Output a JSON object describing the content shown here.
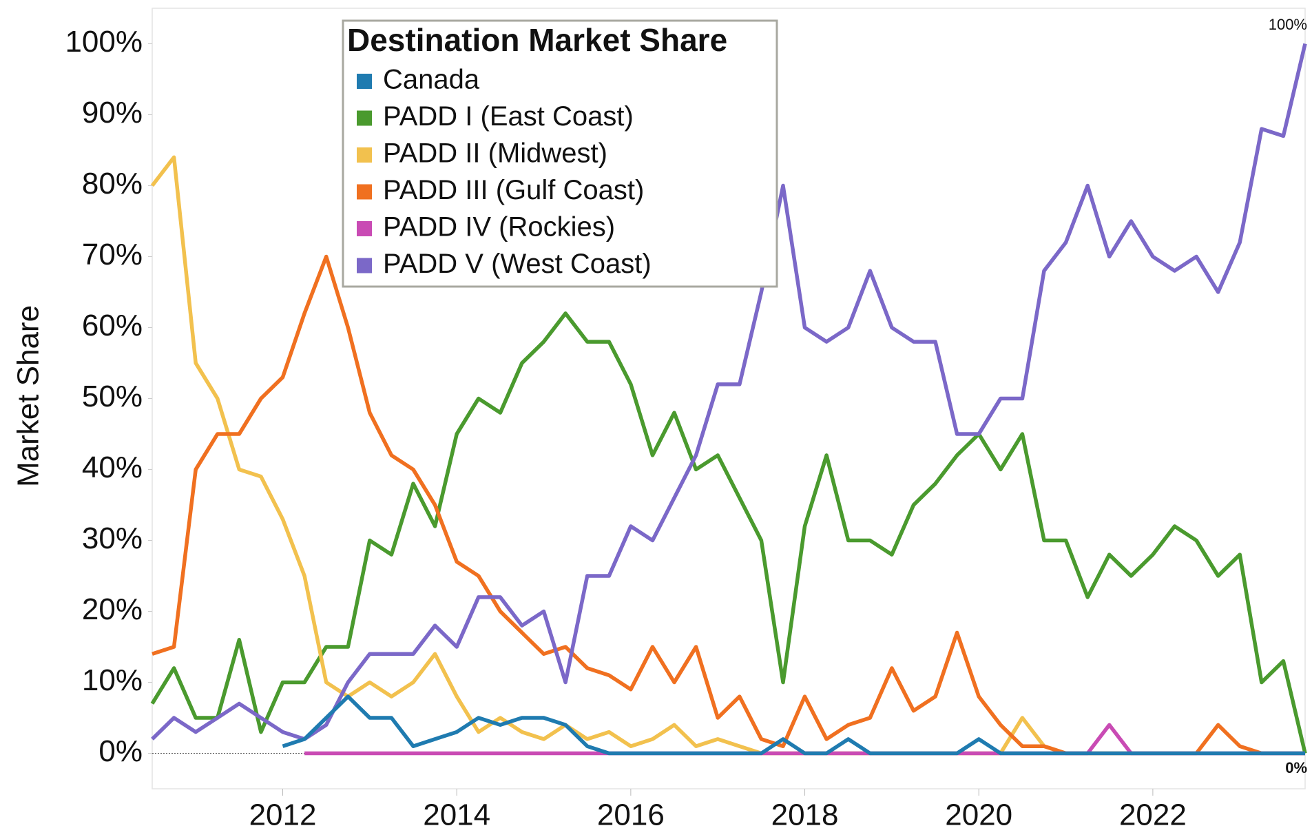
{
  "chart_data": {
    "type": "line",
    "legend_title": "Destination Market Share",
    "y_label": "Market Share",
    "annotations": [
      "100%",
      "0%"
    ],
    "x": [
      2010.5,
      2010.75,
      2011,
      2011.25,
      2011.5,
      2011.75,
      2012,
      2012.25,
      2012.5,
      2012.75,
      2013,
      2013.25,
      2013.5,
      2013.75,
      2014,
      2014.25,
      2014.5,
      2014.75,
      2015,
      2015.25,
      2015.5,
      2015.75,
      2016,
      2016.25,
      2016.5,
      2016.75,
      2017,
      2017.25,
      2017.5,
      2017.75,
      2018,
      2018.25,
      2018.5,
      2018.75,
      2019,
      2019.25,
      2019.5,
      2019.75,
      2020,
      2020.25,
      2020.5,
      2020.75,
      2021,
      2021.25,
      2021.5,
      2021.75,
      2022,
      2022.25,
      2022.5,
      2022.75,
      2023,
      2023.25,
      2023.5,
      2023.75
    ],
    "series": [
      {
        "name": "Canada",
        "color": "#1f7bb0",
        "values": [
          null,
          null,
          1,
          null,
          null,
          null,
          1,
          2,
          5,
          8,
          5,
          5,
          1,
          2,
          3,
          5,
          4,
          5,
          5,
          4,
          1,
          0,
          0,
          0,
          0,
          0,
          0,
          0,
          0,
          2,
          0,
          0,
          2,
          0,
          0,
          0,
          0,
          0,
          2,
          0,
          0,
          0,
          0,
          0,
          0,
          0,
          0,
          0,
          0,
          0,
          0,
          0,
          0,
          0
        ]
      },
      {
        "name": "PADD I (East Coast)",
        "color": "#4a9a2e",
        "values": [
          7,
          12,
          5,
          5,
          16,
          3,
          10,
          10,
          15,
          15,
          30,
          28,
          38,
          32,
          45,
          50,
          48,
          55,
          58,
          62,
          58,
          58,
          52,
          42,
          48,
          40,
          42,
          36,
          30,
          10,
          32,
          42,
          30,
          30,
          28,
          35,
          38,
          42,
          45,
          40,
          45,
          30,
          30,
          22,
          28,
          25,
          28,
          32,
          30,
          25,
          28,
          10,
          13,
          0
        ]
      },
      {
        "name": "PADD II (Midwest)",
        "color": "#f2c14e",
        "values": [
          80,
          84,
          55,
          50,
          40,
          39,
          33,
          25,
          10,
          8,
          10,
          8,
          10,
          14,
          8,
          3,
          5,
          3,
          2,
          4,
          2,
          3,
          1,
          2,
          4,
          1,
          2,
          1,
          0,
          0,
          0,
          0,
          0,
          0,
          0,
          0,
          0,
          0,
          0,
          0,
          5,
          1,
          0,
          null,
          null,
          null,
          null,
          null,
          null,
          null,
          null,
          null,
          null,
          null
        ]
      },
      {
        "name": "PADD III (Gulf Coast)",
        "color": "#f07020",
        "values": [
          14,
          15,
          40,
          45,
          45,
          50,
          53,
          62,
          70,
          60,
          48,
          42,
          40,
          35,
          27,
          25,
          20,
          17,
          14,
          15,
          12,
          11,
          9,
          15,
          10,
          15,
          5,
          8,
          2,
          1,
          8,
          2,
          4,
          5,
          12,
          6,
          8,
          17,
          8,
          4,
          1,
          1,
          0,
          0,
          0,
          0,
          0,
          0,
          0,
          4,
          1,
          0,
          0,
          0
        ]
      },
      {
        "name": "PADD IV (Rockies)",
        "color": "#c94bb4",
        "values": [
          null,
          null,
          null,
          null,
          null,
          null,
          null,
          0,
          0,
          0,
          0,
          0,
          0,
          0,
          0,
          0,
          0,
          0,
          0,
          0,
          0,
          0,
          0,
          0,
          0,
          0,
          0,
          0,
          0,
          0,
          0,
          0,
          0,
          0,
          0,
          0,
          0,
          0,
          0,
          0,
          0,
          0,
          0,
          0,
          4,
          0,
          0,
          0,
          0,
          0,
          0,
          0,
          0,
          0
        ]
      },
      {
        "name": "PADD V (West Coast)",
        "color": "#7b68c8",
        "values": [
          2,
          5,
          3,
          5,
          7,
          5,
          3,
          2,
          4,
          10,
          14,
          14,
          14,
          18,
          15,
          22,
          22,
          18,
          20,
          10,
          25,
          25,
          32,
          30,
          36,
          42,
          52,
          52,
          65,
          80,
          60,
          58,
          60,
          68,
          60,
          58,
          58,
          45,
          45,
          50,
          50,
          68,
          72,
          80,
          70,
          75,
          70,
          68,
          70,
          65,
          72,
          88,
          87,
          100
        ]
      }
    ],
    "xlim": [
      2010.5,
      2023.75
    ],
    "xticks": [
      2012,
      2014,
      2016,
      2018,
      2020,
      2022
    ],
    "ylim": [
      -5,
      105
    ],
    "yticks": [
      {
        "value": 0,
        "label": "0%"
      },
      {
        "value": 10,
        "label": "10%"
      },
      {
        "value": 20,
        "label": "20%"
      },
      {
        "value": 30,
        "label": "30%"
      },
      {
        "value": 40,
        "label": "40%"
      },
      {
        "value": 50,
        "label": "50%"
      },
      {
        "value": 60,
        "label": "60%"
      },
      {
        "value": 70,
        "label": "70%"
      },
      {
        "value": 80,
        "label": "80%"
      },
      {
        "value": 90,
        "label": "90%"
      },
      {
        "value": 100,
        "label": "100%"
      }
    ],
    "grid": false,
    "legend": "top-left"
  }
}
